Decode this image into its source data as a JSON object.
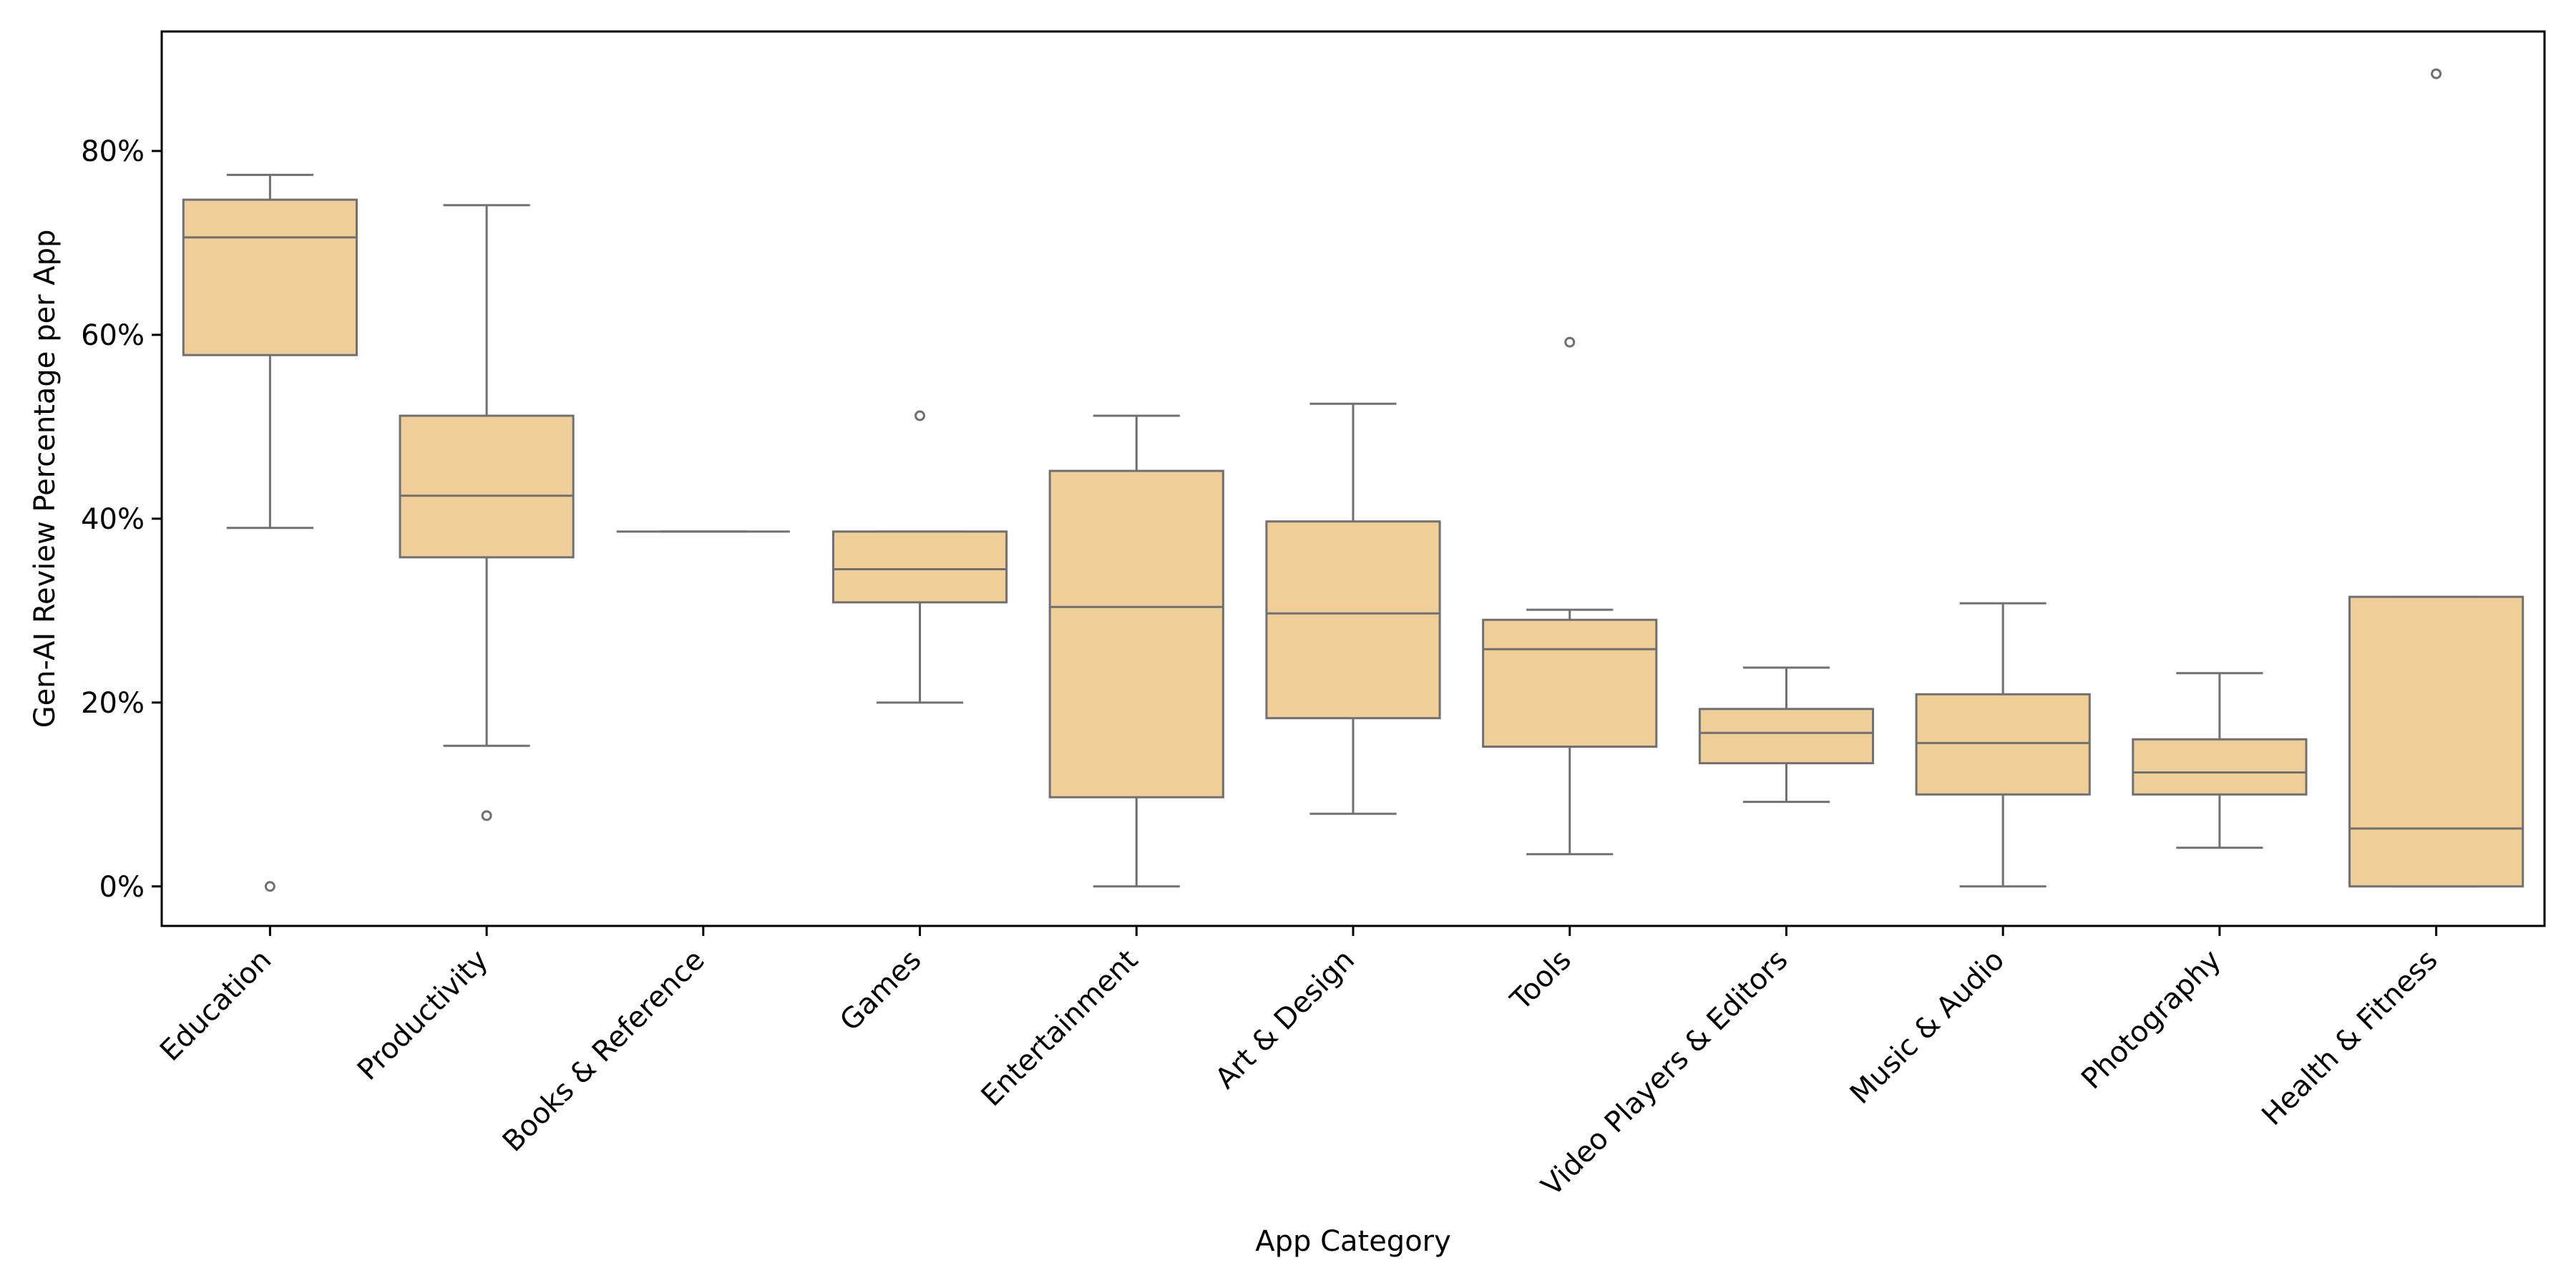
{
  "chart_data": {
    "type": "box",
    "title": "",
    "xlabel": "App Category",
    "ylabel": "Gen-AI Review Percentage per App",
    "ylim": [
      -0.043,
      0.93
    ],
    "yticks": [
      {
        "value": 0.0,
        "label": "0%"
      },
      {
        "value": 0.2,
        "label": "20%"
      },
      {
        "value": 0.4,
        "label": "40%"
      },
      {
        "value": 0.6,
        "label": "60%"
      },
      {
        "value": 0.8,
        "label": "80%"
      }
    ],
    "grid": false,
    "legend": "none",
    "box_color": "#f0ce98",
    "line_color": "#707070",
    "categories": [
      {
        "name": "Education",
        "min": 0.39,
        "q1": 0.578,
        "median": 0.706,
        "q3": 0.747,
        "max": 0.774,
        "outliers": [
          0.0
        ]
      },
      {
        "name": "Productivity",
        "min": 0.153,
        "q1": 0.358,
        "median": 0.425,
        "q3": 0.512,
        "max": 0.741,
        "outliers": [
          0.077
        ]
      },
      {
        "name": "Books & Reference",
        "min": 0.386,
        "q1": 0.386,
        "median": 0.386,
        "q3": 0.386,
        "max": 0.386,
        "outliers": []
      },
      {
        "name": "Games",
        "min": 0.2,
        "q1": 0.309,
        "median": 0.345,
        "q3": 0.386,
        "max": 0.386,
        "outliers": [
          0.512
        ]
      },
      {
        "name": "Entertainment",
        "min": 0.0,
        "q1": 0.097,
        "median": 0.304,
        "q3": 0.452,
        "max": 0.512,
        "outliers": []
      },
      {
        "name": "Art & Design",
        "min": 0.079,
        "q1": 0.183,
        "median": 0.297,
        "q3": 0.397,
        "max": 0.525,
        "outliers": []
      },
      {
        "name": "Tools",
        "min": 0.035,
        "q1": 0.152,
        "median": 0.258,
        "q3": 0.29,
        "max": 0.301,
        "outliers": [
          0.592
        ]
      },
      {
        "name": "Video Players & Editors",
        "min": 0.092,
        "q1": 0.134,
        "median": 0.167,
        "q3": 0.193,
        "max": 0.238,
        "outliers": []
      },
      {
        "name": "Music & Audio",
        "min": 0.0,
        "q1": 0.1,
        "median": 0.156,
        "q3": 0.209,
        "max": 0.308,
        "outliers": []
      },
      {
        "name": "Photography",
        "min": 0.042,
        "q1": 0.1,
        "median": 0.124,
        "q3": 0.16,
        "max": 0.232,
        "outliers": []
      },
      {
        "name": "Health & Fitness",
        "min": 0.0,
        "q1": 0.0,
        "median": 0.063,
        "q3": 0.315,
        "max": 0.315,
        "outliers": [
          0.884
        ]
      }
    ]
  }
}
